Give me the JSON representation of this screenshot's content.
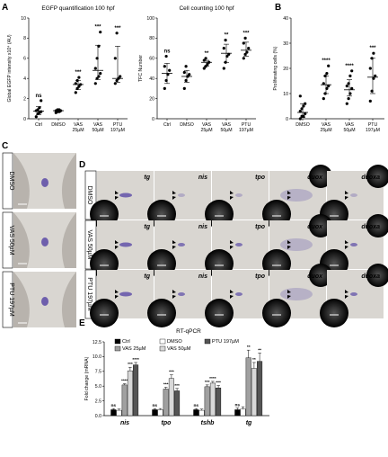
{
  "panels": {
    "A": "A",
    "B": "B",
    "C": "C",
    "D": "D",
    "E": "E"
  },
  "colors": {
    "embryo_bg": "#d9d6d1",
    "eye": "#2a2a2a",
    "stain": "#5a4aa6",
    "bar_ctrl": "#000000",
    "bar_dmso": "#ffffff",
    "bar_vas25": "#a0a0a0",
    "bar_vas50": "#d8d8d8",
    "bar_ptu": "#555555"
  },
  "panelC": {
    "rows": [
      "DMSO",
      "VAS 50µM",
      "PTU 197µM"
    ]
  },
  "panelD": {
    "rows": [
      "DMSO",
      "VAS 50µM",
      "PTU 197µM"
    ],
    "genes": [
      "tg",
      "nis",
      "tpo",
      "duox",
      "duoxa"
    ]
  },
  "chart_data": [
    {
      "id": "A1",
      "type": "scatter",
      "title": "EGFP quantification 100 hpf",
      "ylabel": "Global EGFP intensity x10⁴ (AU)",
      "ylim": [
        0,
        10
      ],
      "yticks": [
        "0",
        "2",
        "4",
        "6",
        "8",
        "10"
      ],
      "categories": [
        "Ctrl",
        "DMSO",
        "VAS\n25µM",
        "VAS\n50µM",
        "PTU\n197µM"
      ],
      "significance": [
        "ns",
        "",
        "***",
        "***",
        "***"
      ],
      "points": [
        [
          0.2,
          0.5,
          0.6,
          0.7,
          0.8,
          0.9,
          1.1,
          1.8
        ],
        [
          0.6,
          0.7,
          0.7,
          0.8,
          0.8,
          0.9,
          0.9
        ],
        [
          2.6,
          3.0,
          3.2,
          3.4,
          3.5,
          3.8,
          4.1
        ],
        [
          3.5,
          4.0,
          4.2,
          4.5,
          5.0,
          6.0,
          7.2,
          8.6
        ],
        [
          3.5,
          3.8,
          4.0,
          4.2,
          6.0,
          8.5
        ]
      ],
      "medians": [
        0.75,
        0.8,
        3.4,
        4.8,
        4.0
      ],
      "err_low": [
        0.4,
        0.65,
        2.9,
        3.9,
        3.6
      ],
      "err_high": [
        1.2,
        0.9,
        3.8,
        7.3,
        7.2
      ]
    },
    {
      "id": "A2",
      "type": "scatter",
      "title": "Cell counting 100 hpf",
      "ylabel": "TFC Number",
      "ylim": [
        0,
        100
      ],
      "yticks": [
        "0",
        "20",
        "40",
        "60",
        "80",
        "100"
      ],
      "categories": [
        "Ctrl",
        "DMSO",
        "VAS\n25µM",
        "VAS\n50µM",
        "PTU\n197µM"
      ],
      "significance": [
        "ns",
        "",
        "**",
        "**",
        "***"
      ],
      "points": [
        [
          30,
          38,
          44,
          48,
          52,
          62
        ],
        [
          30,
          38,
          42,
          44,
          46,
          52
        ],
        [
          50,
          52,
          54,
          56,
          58,
          60
        ],
        [
          50,
          56,
          62,
          64,
          70,
          78
        ],
        [
          60,
          64,
          66,
          70,
          75,
          80
        ]
      ],
      "medians": [
        45,
        42,
        56,
        65,
        68
      ],
      "err_low": [
        35,
        36,
        52,
        56,
        62
      ],
      "err_high": [
        55,
        48,
        58,
        74,
        76
      ]
    },
    {
      "id": "B",
      "type": "scatter",
      "title": "",
      "ylabel": "Proliferating cells (%)",
      "ylim": [
        0,
        40
      ],
      "yticks": [
        "0",
        "10",
        "20",
        "30",
        "40"
      ],
      "categories": [
        "DMSO",
        "VAS\n25µM",
        "VAS\n50µM",
        "PTU\n197µM"
      ],
      "significance": [
        "",
        "****",
        "****",
        "***"
      ],
      "points": [
        [
          0,
          1,
          1,
          2,
          3,
          4,
          5,
          6,
          9
        ],
        [
          8,
          10,
          12,
          13,
          14,
          17,
          18,
          21
        ],
        [
          6,
          8,
          10,
          12,
          13,
          14,
          17,
          19
        ],
        [
          7,
          11,
          16,
          17,
          20,
          24,
          26
        ]
      ],
      "medians": [
        2.5,
        13.5,
        11.5,
        16.5
      ],
      "err_low": [
        0.5,
        10,
        9,
        10
      ],
      "err_high": [
        6,
        17,
        15.5,
        24
      ]
    },
    {
      "id": "E",
      "type": "bar",
      "title": "RT-qPCR",
      "ylabel": "Fold change (mRNA)",
      "ylim": [
        0,
        12.5
      ],
      "yticks": [
        "0.0",
        "2.5",
        "5.0",
        "7.5",
        "10.0",
        "12.5"
      ],
      "categories": [
        "nis",
        "tpo",
        "tshb",
        "tg"
      ],
      "series": [
        {
          "name": "Ctrl",
          "values": [
            1.0,
            1.0,
            1.0,
            1.0
          ],
          "errors": [
            0.2,
            0.2,
            0.2,
            0.3
          ],
          "sig": [
            "ns",
            "ns",
            "ns",
            "ns"
          ]
        },
        {
          "name": "DMSO",
          "values": [
            0.9,
            1.0,
            0.9,
            1.1
          ],
          "errors": [
            0.2,
            0.2,
            0.2,
            0.4
          ],
          "sig": [
            "",
            "",
            "",
            ""
          ]
        },
        {
          "name": "VAS 25µM",
          "values": [
            5.2,
            4.5,
            4.9,
            9.8
          ],
          "errors": [
            0.2,
            0.3,
            0.3,
            1.3
          ],
          "sig": [
            "****",
            "***",
            "***",
            "**"
          ]
        },
        {
          "name": "VAS 50µM",
          "values": [
            7.6,
            6.3,
            5.5,
            8.0
          ],
          "errors": [
            0.6,
            0.6,
            0.3,
            1.0
          ],
          "sig": [
            "***",
            "***",
            "****",
            "**"
          ]
        },
        {
          "name": "PTU 197µM",
          "values": [
            8.6,
            4.2,
            4.7,
            9.2
          ],
          "errors": [
            0.4,
            0.4,
            0.4,
            1.4
          ],
          "sig": [
            "****",
            "***",
            "***",
            "**"
          ]
        }
      ]
    }
  ]
}
